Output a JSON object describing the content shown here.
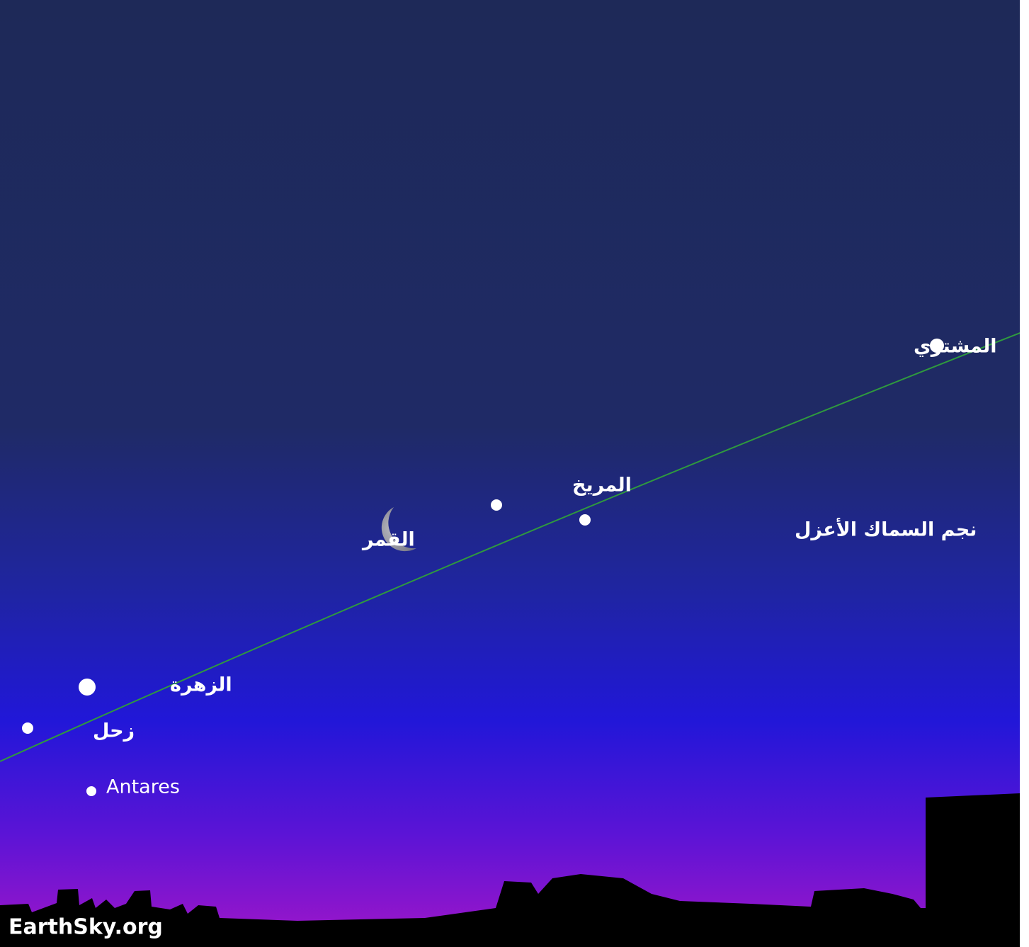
{
  "objects": [
    {
      "label": "المشتري"
    },
    {
      "label": "المريخ"
    },
    {
      "label": "نجم السماك الأعزل"
    },
    {
      "label": "القمر"
    },
    {
      "label": "الزهرة"
    },
    {
      "label": "زحل"
    },
    {
      "label": "Antares"
    }
  ],
  "watermark": "EarthSky.org"
}
